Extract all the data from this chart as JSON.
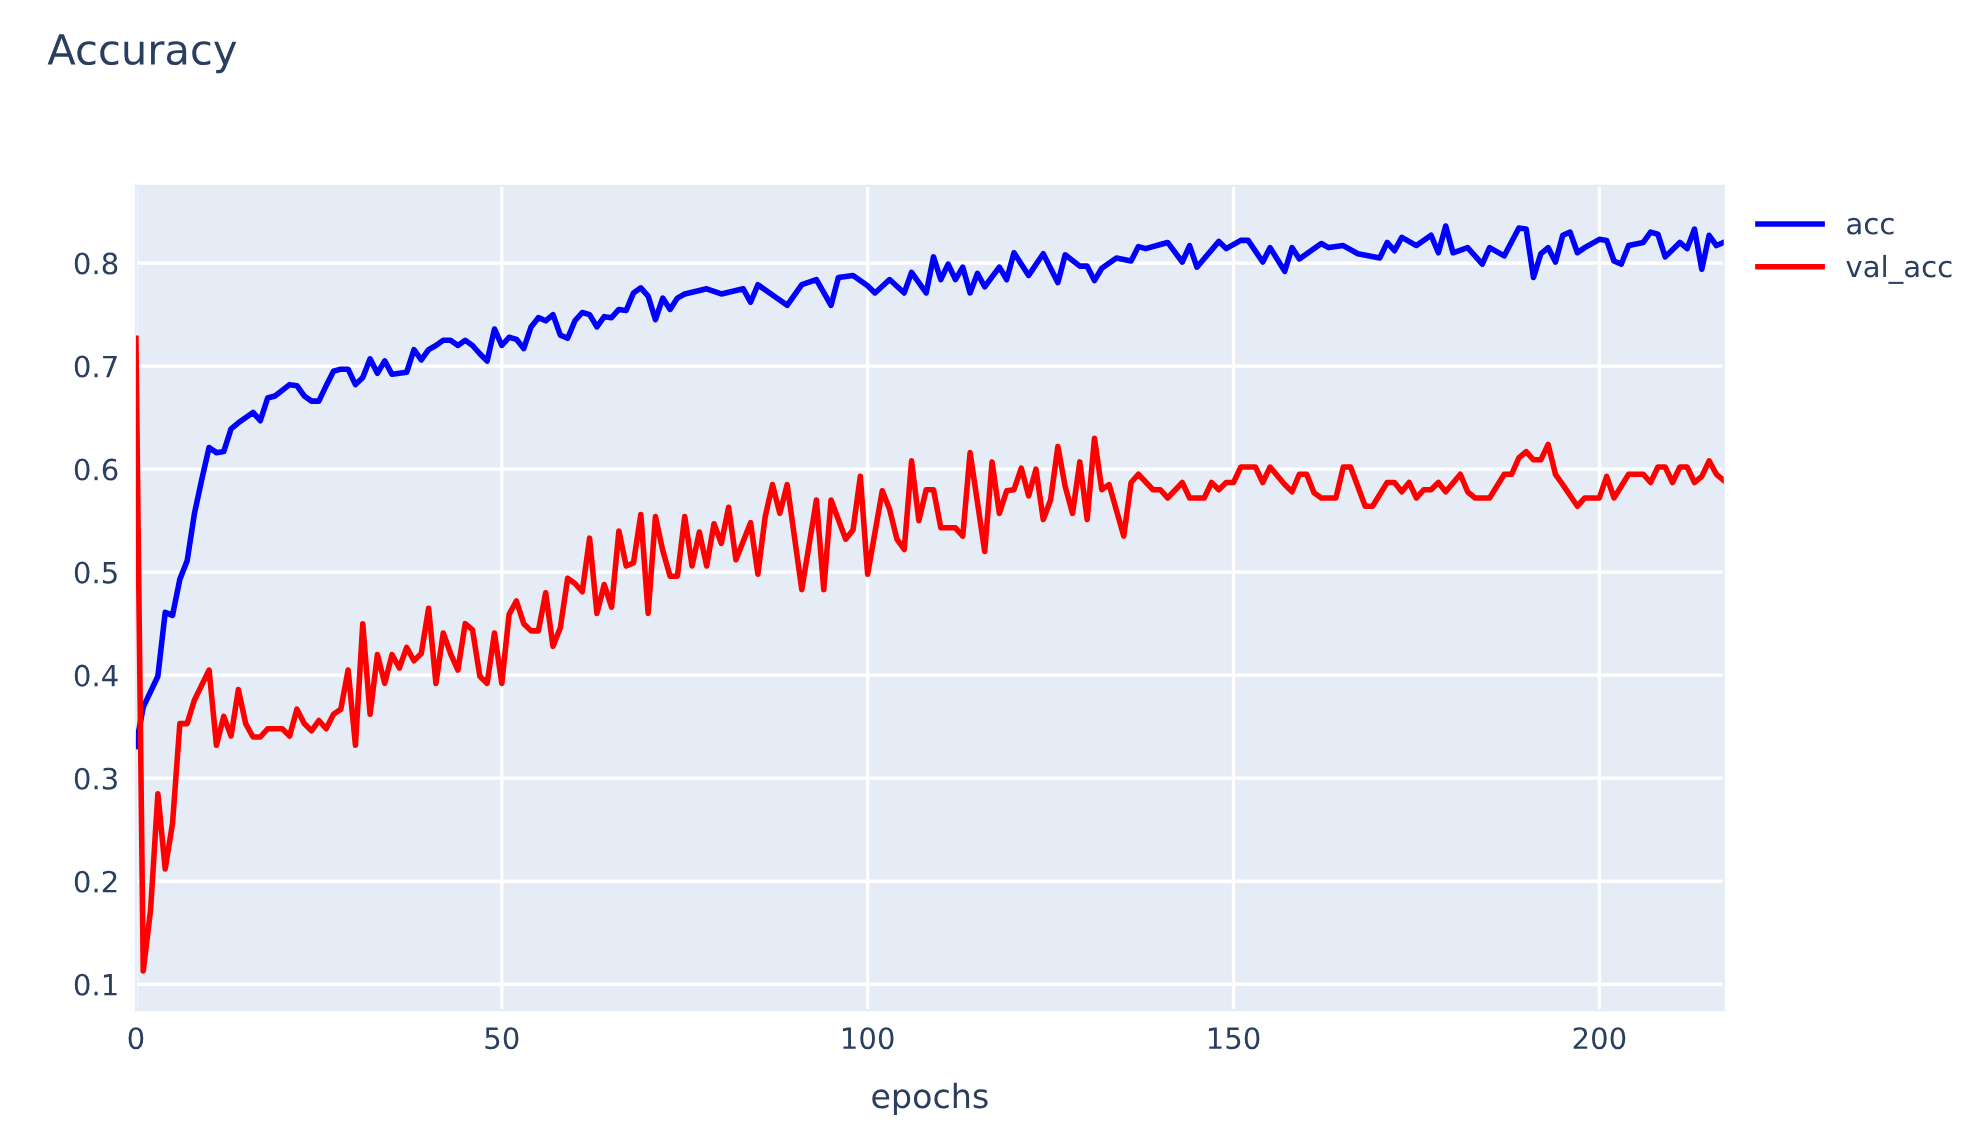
{
  "chart_data": {
    "type": "line",
    "title": "Accuracy",
    "xlabel": "epochs",
    "xlim": [
      0,
      217
    ],
    "ylim": [
      0.075,
      0.875
    ],
    "xticks": [
      0,
      50,
      100,
      150,
      200
    ],
    "yticks": [
      0.1,
      0.2,
      0.3,
      0.4,
      0.5,
      0.6,
      0.7,
      0.8
    ],
    "grid": true,
    "legend": "top right",
    "marker": "none",
    "line_style": "solid",
    "series": [
      {
        "name": "acc",
        "color": "#0000ff",
        "x": [
          0,
          1,
          3,
          4,
          5,
          6,
          7,
          8,
          9,
          10,
          11,
          12,
          13,
          14,
          16,
          17,
          18,
          19,
          21,
          22,
          23,
          24,
          25,
          26,
          27,
          28,
          29,
          30,
          31,
          32,
          33,
          34,
          35,
          37,
          38,
          39,
          40,
          41,
          42,
          43,
          44,
          45,
          46,
          47,
          48,
          49,
          50,
          51,
          52,
          53,
          54,
          55,
          56,
          57,
          58,
          59,
          60,
          61,
          62,
          63,
          64,
          65,
          66,
          67,
          68,
          69,
          70,
          71,
          72,
          73,
          74,
          75,
          78,
          80,
          83,
          84,
          85,
          89,
          91,
          93,
          95,
          96,
          98,
          100,
          101,
          103,
          105,
          106,
          108,
          109,
          110,
          111,
          112,
          113,
          114,
          115,
          116,
          118,
          119,
          120,
          122,
          124,
          126,
          127,
          129,
          130,
          131,
          132,
          134,
          136,
          137,
          138,
          140,
          141,
          143,
          144,
          145,
          148,
          149,
          151,
          152,
          154,
          155,
          157,
          158,
          159,
          162,
          163,
          165,
          167,
          170,
          171,
          172,
          173,
          175,
          177,
          178,
          179,
          180,
          182,
          184,
          185,
          187,
          189,
          190,
          191,
          192,
          193,
          194,
          195,
          196,
          197,
          198,
          200,
          201,
          202,
          203,
          204,
          206,
          207,
          208,
          209,
          211,
          212,
          213,
          214,
          215,
          216,
          217
        ],
        "values": [
          0.331,
          0.369,
          0.399,
          0.461,
          0.458,
          0.493,
          0.511,
          0.557,
          0.59,
          0.621,
          0.616,
          0.617,
          0.639,
          0.645,
          0.655,
          0.647,
          0.669,
          0.671,
          0.682,
          0.681,
          0.671,
          0.666,
          0.666,
          0.681,
          0.695,
          0.697,
          0.697,
          0.682,
          0.689,
          0.707,
          0.693,
          0.705,
          0.692,
          0.694,
          0.716,
          0.706,
          0.716,
          0.72,
          0.725,
          0.725,
          0.72,
          0.725,
          0.72,
          0.712,
          0.705,
          0.736,
          0.72,
          0.728,
          0.726,
          0.717,
          0.738,
          0.747,
          0.744,
          0.75,
          0.73,
          0.727,
          0.744,
          0.752,
          0.75,
          0.738,
          0.748,
          0.747,
          0.755,
          0.754,
          0.771,
          0.776,
          0.768,
          0.745,
          0.766,
          0.755,
          0.766,
          0.77,
          0.775,
          0.77,
          0.775,
          0.762,
          0.779,
          0.759,
          0.779,
          0.784,
          0.759,
          0.786,
          0.788,
          0.778,
          0.771,
          0.784,
          0.771,
          0.791,
          0.771,
          0.806,
          0.784,
          0.799,
          0.784,
          0.796,
          0.771,
          0.79,
          0.777,
          0.796,
          0.784,
          0.81,
          0.788,
          0.809,
          0.781,
          0.808,
          0.797,
          0.797,
          0.783,
          0.795,
          0.805,
          0.802,
          0.816,
          0.814,
          0.818,
          0.82,
          0.801,
          0.817,
          0.796,
          0.821,
          0.814,
          0.822,
          0.822,
          0.801,
          0.815,
          0.792,
          0.815,
          0.804,
          0.819,
          0.815,
          0.817,
          0.809,
          0.805,
          0.82,
          0.812,
          0.825,
          0.817,
          0.827,
          0.81,
          0.836,
          0.81,
          0.815,
          0.799,
          0.815,
          0.807,
          0.834,
          0.833,
          0.786,
          0.809,
          0.815,
          0.801,
          0.827,
          0.83,
          0.81,
          0.815,
          0.823,
          0.822,
          0.802,
          0.799,
          0.817,
          0.82,
          0.83,
          0.828,
          0.806,
          0.82,
          0.814,
          0.833,
          0.794,
          0.827,
          0.817,
          0.82
        ]
      },
      {
        "name": "val_acc",
        "color": "#ff0000",
        "x": [
          0,
          1,
          2,
          3,
          4,
          5,
          6,
          7,
          8,
          10,
          11,
          12,
          13,
          14,
          15,
          16,
          17,
          18,
          20,
          21,
          22,
          23,
          24,
          25,
          26,
          27,
          28,
          29,
          30,
          31,
          32,
          33,
          34,
          35,
          36,
          37,
          38,
          39,
          40,
          41,
          42,
          43,
          44,
          45,
          46,
          47,
          48,
          49,
          50,
          51,
          52,
          53,
          54,
          55,
          56,
          57,
          58,
          59,
          60,
          61,
          62,
          63,
          64,
          65,
          66,
          67,
          68,
          69,
          70,
          71,
          72,
          73,
          74,
          75,
          76,
          77,
          78,
          79,
          80,
          81,
          82,
          84,
          85,
          86,
          87,
          88,
          89,
          91,
          93,
          94,
          95,
          97,
          98,
          99,
          100,
          102,
          103,
          104,
          105,
          106,
          107,
          108,
          109,
          110,
          112,
          113,
          114,
          116,
          117,
          118,
          119,
          120,
          121,
          122,
          123,
          124,
          125,
          126,
          127,
          128,
          129,
          130,
          131,
          132,
          133,
          135,
          136,
          137,
          139,
          140,
          141,
          143,
          144,
          146,
          147,
          148,
          149,
          150,
          151,
          153,
          154,
          155,
          157,
          158,
          159,
          160,
          161,
          162,
          164,
          165,
          166,
          168,
          169,
          171,
          172,
          173,
          174,
          175,
          176,
          177,
          178,
          179,
          181,
          182,
          183,
          185,
          187,
          188,
          189,
          190,
          191,
          192,
          193,
          194,
          195,
          197,
          198,
          200,
          201,
          202,
          204,
          206,
          207,
          208,
          209,
          210,
          211,
          212,
          213,
          214,
          215,
          216,
          217
        ],
        "values": [
          0.727,
          0.113,
          0.172,
          0.285,
          0.212,
          0.256,
          0.353,
          0.353,
          0.376,
          0.405,
          0.332,
          0.36,
          0.341,
          0.386,
          0.353,
          0.34,
          0.34,
          0.348,
          0.348,
          0.341,
          0.367,
          0.353,
          0.346,
          0.356,
          0.348,
          0.362,
          0.367,
          0.405,
          0.332,
          0.45,
          0.362,
          0.42,
          0.392,
          0.42,
          0.407,
          0.427,
          0.414,
          0.421,
          0.465,
          0.392,
          0.441,
          0.421,
          0.405,
          0.45,
          0.444,
          0.399,
          0.392,
          0.441,
          0.392,
          0.459,
          0.472,
          0.45,
          0.443,
          0.443,
          0.48,
          0.428,
          0.446,
          0.494,
          0.489,
          0.481,
          0.533,
          0.46,
          0.488,
          0.466,
          0.54,
          0.506,
          0.509,
          0.556,
          0.46,
          0.554,
          0.521,
          0.496,
          0.496,
          0.554,
          0.506,
          0.539,
          0.506,
          0.547,
          0.528,
          0.563,
          0.512,
          0.548,
          0.498,
          0.554,
          0.585,
          0.557,
          0.585,
          0.483,
          0.57,
          0.483,
          0.57,
          0.532,
          0.541,
          0.593,
          0.498,
          0.579,
          0.561,
          0.532,
          0.522,
          0.608,
          0.55,
          0.58,
          0.58,
          0.543,
          0.543,
          0.535,
          0.616,
          0.52,
          0.607,
          0.557,
          0.579,
          0.58,
          0.601,
          0.574,
          0.6,
          0.551,
          0.57,
          0.622,
          0.583,
          0.557,
          0.607,
          0.551,
          0.63,
          0.58,
          0.585,
          0.535,
          0.587,
          0.595,
          0.58,
          0.58,
          0.572,
          0.587,
          0.572,
          0.572,
          0.587,
          0.58,
          0.587,
          0.587,
          0.602,
          0.602,
          0.587,
          0.602,
          0.585,
          0.578,
          0.595,
          0.595,
          0.577,
          0.572,
          0.572,
          0.602,
          0.602,
          0.564,
          0.564,
          0.587,
          0.587,
          0.578,
          0.587,
          0.572,
          0.58,
          0.58,
          0.587,
          0.578,
          0.595,
          0.578,
          0.572,
          0.572,
          0.595,
          0.595,
          0.611,
          0.617,
          0.609,
          0.609,
          0.624,
          0.595,
          0.585,
          0.564,
          0.572,
          0.572,
          0.593,
          0.572,
          0.595,
          0.595,
          0.587,
          0.602,
          0.602,
          0.587,
          0.602,
          0.602,
          0.587,
          0.593,
          0.608,
          0.595,
          0.589
        ]
      }
    ]
  }
}
